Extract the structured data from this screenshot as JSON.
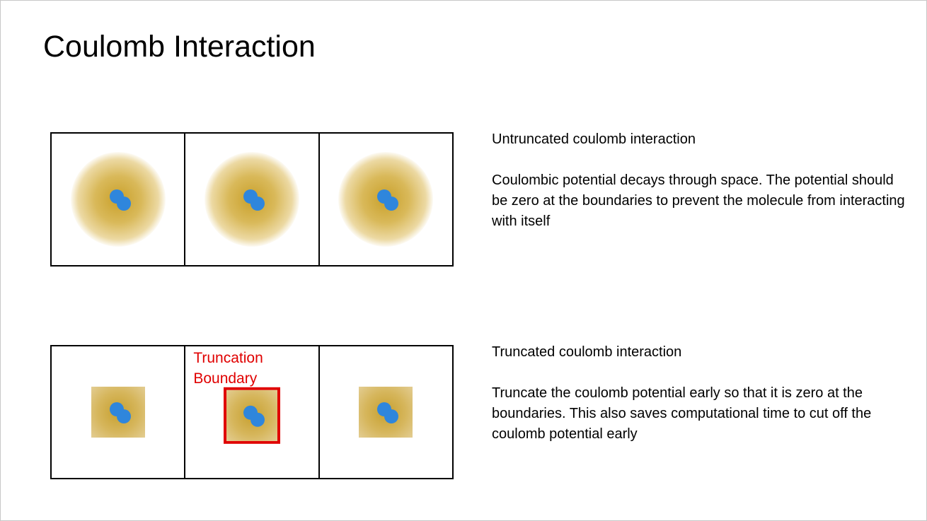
{
  "slide": {
    "title": "Coulomb Interaction"
  },
  "untruncated": {
    "heading": "Untruncated coulomb interaction",
    "description": "Coulombic potential decays through space. The potential should be zero at the boundaries to prevent the molecule from interacting with itself",
    "cell_count": 3
  },
  "truncated": {
    "heading": "Truncated coulomb interaction",
    "description": "Truncate the coulomb potential early so that it is zero at the boundaries. This also saves computational time to cut off the coulomb potential early",
    "boundary_label_line1": "Truncation",
    "boundary_label_line2": "Boundary",
    "cell_count": 3
  },
  "colors": {
    "atom": "#2f86dc",
    "potential_glow": "#c9a02a",
    "truncation_boundary": "#e00000",
    "cell_border": "#000000"
  },
  "icons": {
    "molecule": "two-atom-molecule-icon"
  }
}
